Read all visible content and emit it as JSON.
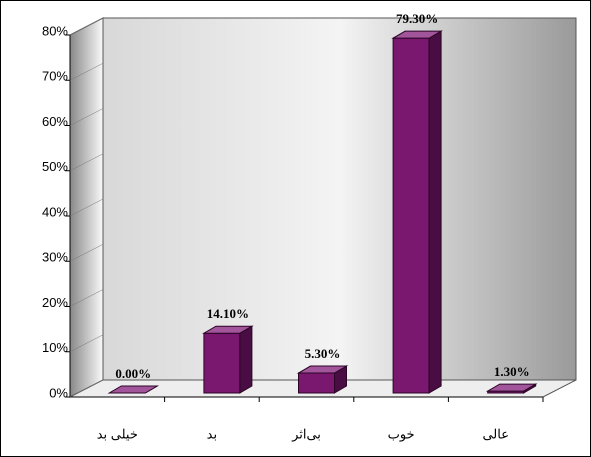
{
  "chart_data": {
    "type": "bar3d",
    "categories": [
      "خیلی بد",
      "بد",
      "بی‌اثر",
      "خوب",
      "عالی"
    ],
    "values": [
      0,
      14.1,
      5.3,
      79.3,
      1.3
    ],
    "value_labels": [
      "0.00%",
      "14.10%",
      "5.30%",
      "79.30%",
      "1.30%"
    ],
    "color": "#7a1870",
    "ylim": [
      0,
      80
    ],
    "yticks": [
      {
        "value": 0,
        "label": "0%"
      },
      {
        "value": 10,
        "label": "10%"
      },
      {
        "value": 20,
        "label": "20%"
      },
      {
        "value": 30,
        "label": "30%"
      },
      {
        "value": 40,
        "label": "40%"
      },
      {
        "value": 50,
        "label": "50%"
      },
      {
        "value": 60,
        "label": "60%"
      },
      {
        "value": 70,
        "label": "70%"
      },
      {
        "value": 80,
        "label": "80%"
      }
    ]
  }
}
